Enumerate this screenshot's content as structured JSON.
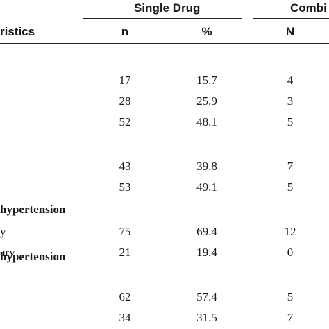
{
  "table": {
    "group_headers": {
      "single_drug": "Single Drug",
      "combination": "Combi"
    },
    "column_headers": {
      "characteristics": "ristics",
      "n": "n",
      "percent": "%",
      "N": "N"
    },
    "sections": [
      {
        "label": ""
      },
      {
        "label": ""
      },
      {
        "label": "hypertension"
      },
      {
        "label": "hypertension"
      }
    ],
    "rows": [
      {
        "label": "",
        "n": "17",
        "percent": "15.7",
        "N": "4"
      },
      {
        "label": "",
        "n": "28",
        "percent": "25.9",
        "N": "3"
      },
      {
        "label": "",
        "n": "52",
        "percent": "48.1",
        "N": "5"
      },
      {
        "label": "",
        "n": "43",
        "percent": "39.8",
        "N": "7"
      },
      {
        "label": "",
        "n": "53",
        "percent": "49.1",
        "N": "5"
      },
      {
        "label": "y",
        "n": "75",
        "percent": "69.4",
        "N": "12"
      },
      {
        "label": "ary",
        "n": "21",
        "percent": "19.4",
        "N": "0"
      },
      {
        "label": "",
        "n": "62",
        "percent": "57.4",
        "N": "5"
      },
      {
        "label": "",
        "n": "34",
        "percent": "31.5",
        "N": "7"
      }
    ]
  }
}
